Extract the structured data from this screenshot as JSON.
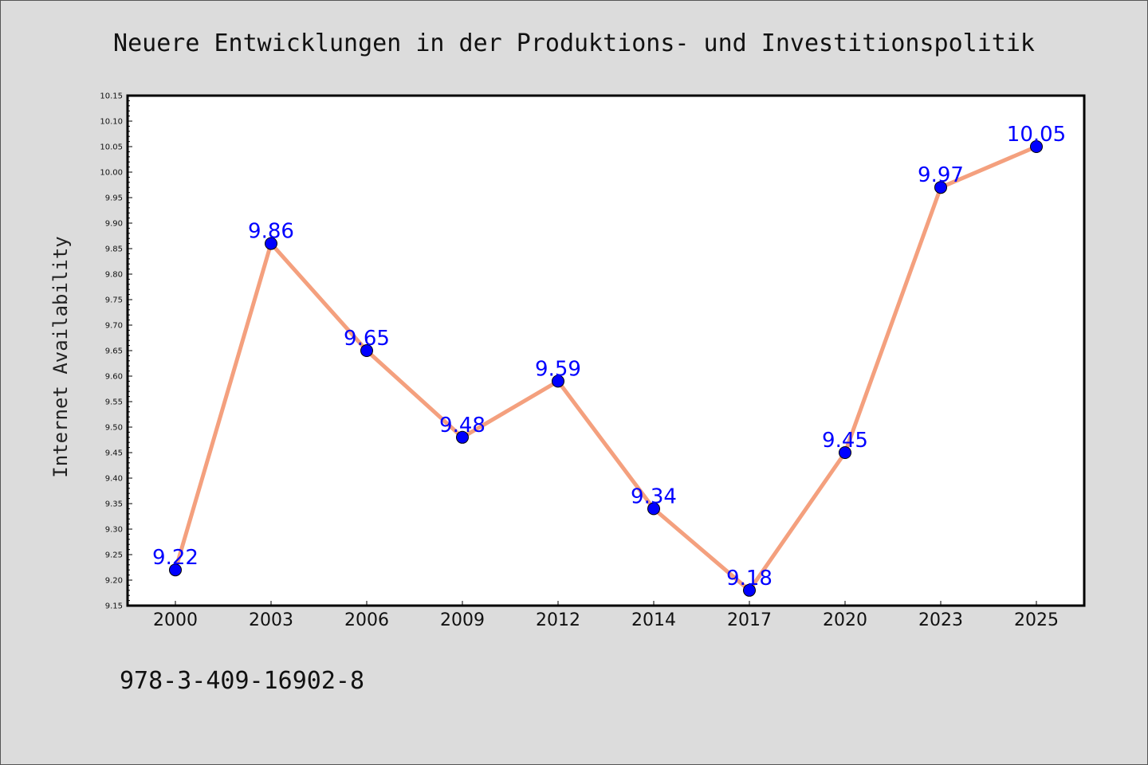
{
  "chart_data": {
    "type": "line",
    "title": "Neuere Entwicklungen in der Produktions- und Investitionspolitik",
    "xlabel": "",
    "ylabel": "Internet Availability",
    "categories": [
      "2000",
      "2003",
      "2006",
      "2009",
      "2012",
      "2014",
      "2017",
      "2020",
      "2023",
      "2025"
    ],
    "values": [
      9.22,
      9.86,
      9.65,
      9.48,
      9.59,
      9.34,
      9.18,
      9.45,
      9.97,
      10.05
    ],
    "data_labels": [
      "9.22",
      "9.86",
      "9.65",
      "9.48",
      "9.59",
      "9.34",
      "9.18",
      "9.45",
      "9.97",
      "10.05"
    ],
    "ylim": [
      9.15,
      10.15
    ],
    "yticks": [
      "9.15",
      "9.20",
      "9.25",
      "9.30",
      "9.35",
      "9.40",
      "9.45",
      "9.50",
      "9.55",
      "9.60",
      "9.65",
      "9.70",
      "9.75",
      "9.80",
      "9.85",
      "9.90",
      "9.95",
      "10.00",
      "10.05",
      "10.10",
      "10.15"
    ],
    "grid": false,
    "line_color": "#f4a07e",
    "marker_color": "#0000ff",
    "label_color": "#0000ff"
  },
  "footer_text": "978-3-409-16902-8"
}
